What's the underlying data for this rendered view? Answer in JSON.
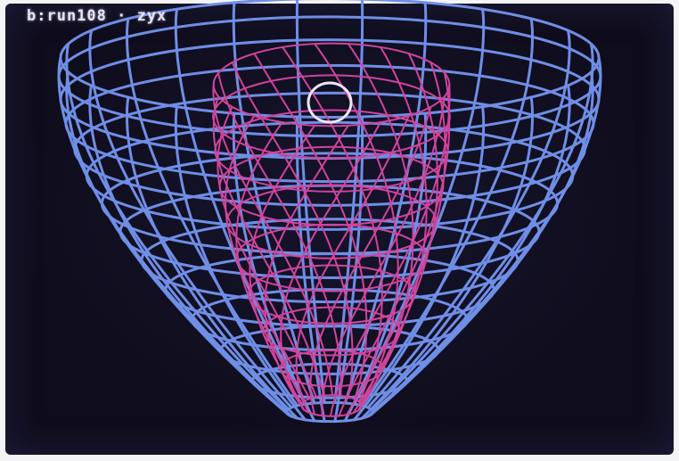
{
  "screen": {
    "status_text": "b:run108 · zyx"
  },
  "colors": {
    "background": "#0f0d1c",
    "outer_wireframe": "#6f8ee6",
    "inner_wireframe": "#d0449c",
    "top_ring": "#ece6f5",
    "text": "#e9e4f4"
  },
  "icons": {
    "outer_surface": "blue-wireframe-surface",
    "inner_surface": "magenta-wireframe-surface",
    "ring": "white-ring"
  }
}
